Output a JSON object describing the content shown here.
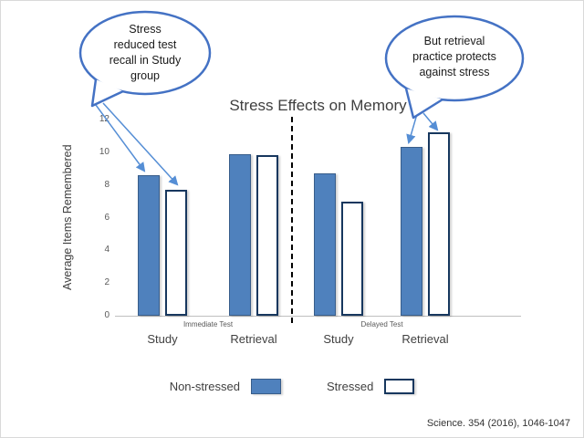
{
  "chart_data": {
    "type": "bar",
    "title": "Stress Effects on Memory",
    "ylabel": "Average Items Remembered",
    "ylim": [
      0,
      12
    ],
    "yticks": [
      0,
      2,
      4,
      6,
      8,
      10,
      12
    ],
    "grid": false,
    "legend_position": "bottom",
    "sections": [
      {
        "label": "Immediate Test",
        "categories": [
          "Study",
          "Retrieval"
        ]
      },
      {
        "label": "Delayed Test",
        "categories": [
          "Study",
          "Retrieval"
        ]
      }
    ],
    "categories": [
      "Study",
      "Retrieval",
      "Study",
      "Retrieval"
    ],
    "series": [
      {
        "name": "Non-stressed",
        "fill": "#4f81bd",
        "values": [
          8.6,
          9.9,
          8.7,
          10.3
        ]
      },
      {
        "name": "Stressed",
        "fill": "#ffffff",
        "values": [
          7.7,
          9.8,
          7.0,
          11.2
        ]
      }
    ]
  },
  "callouts": {
    "left": {
      "lines": [
        "Stress",
        "reduced test",
        "recall in Study",
        "group"
      ]
    },
    "right": {
      "lines": [
        "But retrieval",
        "practice protects",
        "against stress"
      ]
    }
  },
  "citation": "Science. 354 (2016), 1046-1047",
  "colors": {
    "bar_blue": "#4f81bd",
    "bar_outline": "#17375e",
    "callout_blue": "#4472c4",
    "arrow_blue": "#558ed5"
  }
}
